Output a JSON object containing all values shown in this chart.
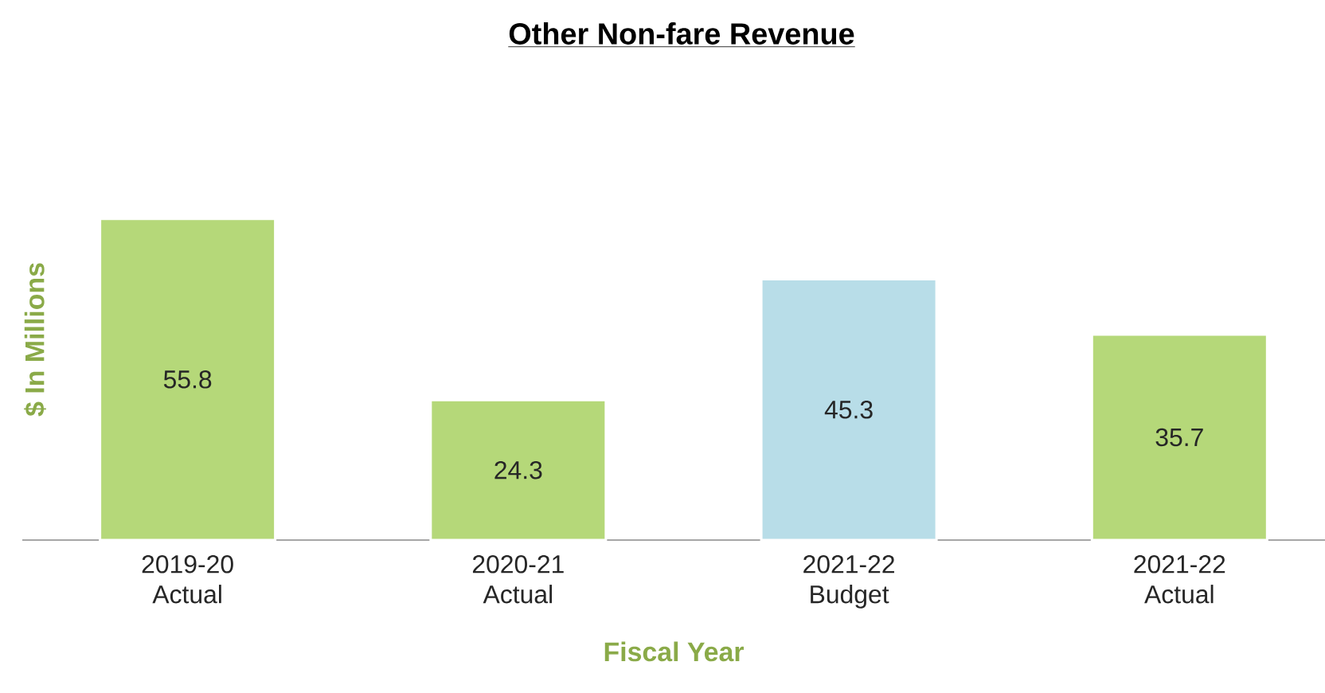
{
  "chart_data": {
    "type": "bar",
    "title": "Other Non-fare Revenue",
    "xlabel": "Fiscal Year",
    "ylabel": "$ In Millions",
    "categories": [
      "2019-20 Actual",
      "2020-21 Actual",
      "2021-22 Budget",
      "2021-22 Actual"
    ],
    "values": [
      55.8,
      24.3,
      45.3,
      35.7
    ],
    "colors": [
      "#b5d879",
      "#b5d879",
      "#b8dde8",
      "#b5d879"
    ],
    "data_labels": true
  }
}
